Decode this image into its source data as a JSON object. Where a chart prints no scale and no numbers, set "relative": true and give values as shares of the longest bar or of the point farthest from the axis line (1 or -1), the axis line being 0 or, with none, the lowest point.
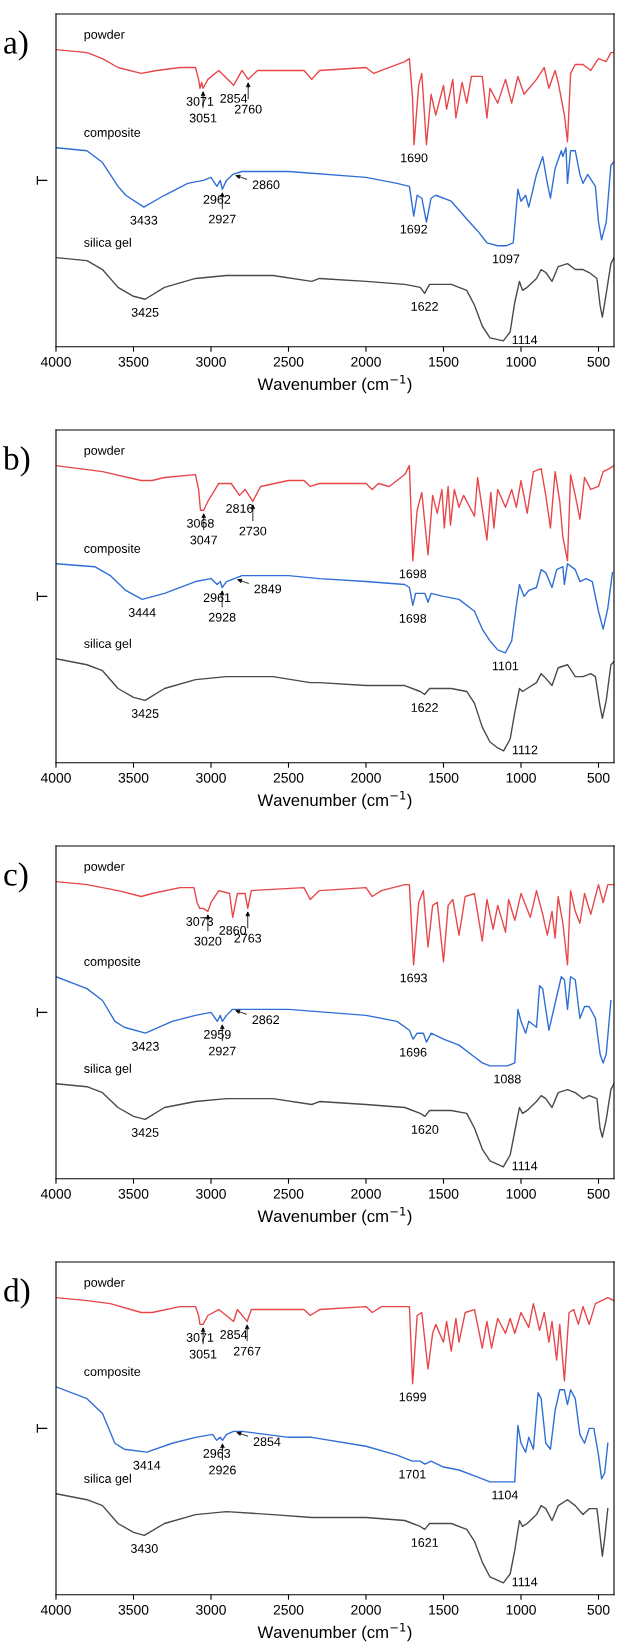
{
  "chart_data": [
    {
      "type": "line",
      "title": "a)",
      "xlabel": "Wavenumber (cm$^{−1}$)",
      "ylabel": "T",
      "relative": true,
      "tick_labels": "x",
      "xlim": [
        4000,
        400
      ],
      "xticks": [
        4000,
        3500,
        3000,
        2500,
        2000,
        1500,
        1000,
        500
      ],
      "series": [
        {
          "name": "powder",
          "color": "#e8474a",
          "x": [
            4000,
            3800,
            3700,
            3600,
            3450,
            3350,
            3200,
            3100,
            3080,
            3071,
            3060,
            3051,
            3020,
            2950,
            2854,
            2800,
            2760,
            2700,
            2400,
            2350,
            2300,
            2000,
            1950,
            1900,
            1750,
            1720,
            1700,
            1690,
            1660,
            1640,
            1610,
            1580,
            1550,
            1500,
            1480,
            1440,
            1420,
            1380,
            1350,
            1320,
            1250,
            1220,
            1200,
            1150,
            1100,
            1060,
            1020,
            980,
            900,
            850,
            820,
            780,
            760,
            720,
            700,
            680,
            650,
            600,
            550,
            500,
            450,
            420,
            400
          ],
          "values": [
            1.0,
            0.99,
            0.97,
            0.94,
            0.92,
            0.93,
            0.94,
            0.94,
            0.9,
            0.87,
            0.89,
            0.87,
            0.9,
            0.93,
            0.88,
            0.93,
            0.9,
            0.93,
            0.93,
            0.9,
            0.93,
            0.94,
            0.92,
            0.93,
            0.96,
            0.97,
            0.84,
            0.68,
            0.88,
            0.92,
            0.68,
            0.85,
            0.78,
            0.88,
            0.8,
            0.9,
            0.77,
            0.89,
            0.82,
            0.91,
            0.91,
            0.77,
            0.87,
            0.82,
            0.9,
            0.82,
            0.91,
            0.85,
            0.9,
            0.94,
            0.87,
            0.93,
            0.89,
            0.78,
            0.69,
            0.92,
            0.95,
            0.95,
            0.93,
            0.97,
            0.96,
            0.99,
            0.99
          ]
        },
        {
          "name": "composite",
          "color": "#2f6fd6",
          "x": [
            4000,
            3800,
            3700,
            3600,
            3550,
            3433,
            3300,
            3150,
            3050,
            3000,
            2962,
            2940,
            2927,
            2900,
            2860,
            2800,
            2500,
            2000,
            1800,
            1720,
            1692,
            1670,
            1640,
            1610,
            1580,
            1550,
            1450,
            1350,
            1280,
            1220,
            1150,
            1097,
            1050,
            1020,
            1000,
            970,
            950,
            900,
            860,
            830,
            810,
            780,
            740,
            730,
            710,
            700,
            680,
            650,
            620,
            600,
            570,
            520,
            500,
            480,
            450,
            420,
            405
          ],
          "values": [
            0.67,
            0.66,
            0.62,
            0.54,
            0.51,
            0.47,
            0.51,
            0.55,
            0.56,
            0.57,
            0.54,
            0.56,
            0.53,
            0.56,
            0.58,
            0.59,
            0.59,
            0.57,
            0.55,
            0.54,
            0.44,
            0.51,
            0.5,
            0.42,
            0.5,
            0.51,
            0.49,
            0.43,
            0.39,
            0.35,
            0.34,
            0.34,
            0.35,
            0.53,
            0.49,
            0.51,
            0.47,
            0.58,
            0.64,
            0.55,
            0.5,
            0.6,
            0.66,
            0.64,
            0.67,
            0.55,
            0.66,
            0.66,
            0.58,
            0.55,
            0.58,
            0.54,
            0.42,
            0.36,
            0.42,
            0.61,
            0.62
          ]
        },
        {
          "name": "silica gel",
          "color": "#4a4a4a",
          "x": [
            4000,
            3800,
            3700,
            3600,
            3500,
            3425,
            3300,
            3100,
            2900,
            2600,
            2350,
            2300,
            2000,
            1750,
            1650,
            1622,
            1590,
            1450,
            1350,
            1300,
            1250,
            1200,
            1114,
            1070,
            1040,
            1010,
            990,
            960,
            900,
            870,
            840,
            800,
            760,
            700,
            650,
            600,
            560,
            510,
            490,
            475,
            450,
            420,
            400
          ],
          "values": [
            0.3,
            0.29,
            0.26,
            0.2,
            0.17,
            0.16,
            0.2,
            0.23,
            0.24,
            0.24,
            0.22,
            0.23,
            0.22,
            0.21,
            0.2,
            0.18,
            0.21,
            0.21,
            0.19,
            0.14,
            0.07,
            0.03,
            0.02,
            0.05,
            0.15,
            0.22,
            0.19,
            0.2,
            0.23,
            0.26,
            0.25,
            0.22,
            0.27,
            0.28,
            0.26,
            0.26,
            0.25,
            0.23,
            0.14,
            0.1,
            0.18,
            0.28,
            0.3
          ]
        }
      ],
      "annotations": [
        {
          "text": "3071",
          "x": 3071,
          "y": 0.87
        },
        {
          "text": "3051",
          "x": 3051,
          "y": 0.87
        },
        {
          "text": "2854",
          "x": 2854,
          "y": 0.88
        },
        {
          "text": "2760",
          "x": 2760,
          "y": 0.9
        },
        {
          "text": "1690",
          "x": 1690,
          "y": 0.68
        },
        {
          "text": "3433",
          "x": 3433,
          "y": 0.47
        },
        {
          "text": "2962",
          "x": 2962,
          "y": 0.54
        },
        {
          "text": "2927",
          "x": 2927,
          "y": 0.53
        },
        {
          "text": "2860",
          "x": 2860,
          "y": 0.58
        },
        {
          "text": "1692",
          "x": 1692,
          "y": 0.44
        },
        {
          "text": "1097",
          "x": 1097,
          "y": 0.34
        },
        {
          "text": "3425",
          "x": 3425,
          "y": 0.16
        },
        {
          "text": "1622",
          "x": 1622,
          "y": 0.18
        },
        {
          "text": "1114",
          "x": 1114,
          "y": 0.02
        }
      ]
    },
    {
      "type": "line",
      "title": "b)",
      "xlabel": "Wavenumber (cm$^{−1}$)",
      "ylabel": "T",
      "relative": true,
      "tick_labels": "x",
      "xlim": [
        4000,
        400
      ],
      "xticks": [
        4000,
        3500,
        3000,
        2500,
        2000,
        1500,
        1000,
        500
      ],
      "series": [
        {
          "name": "powder",
          "color": "#e8474a",
          "x": [
            4000,
            3700,
            3450,
            3380,
            3300,
            3100,
            3080,
            3068,
            3047,
            3020,
            2950,
            2870,
            2816,
            2780,
            2730,
            2680,
            2500,
            2400,
            2360,
            2300,
            2000,
            1960,
            1920,
            1850,
            1750,
            1720,
            1698,
            1670,
            1640,
            1600,
            1570,
            1540,
            1510,
            1495,
            1470,
            1455,
            1430,
            1400,
            1370,
            1300,
            1280,
            1220,
            1195,
            1175,
            1150,
            1100,
            1060,
            1030,
            1000,
            960,
            920,
            870,
            840,
            810,
            780,
            750,
            730,
            700,
            680,
            650,
            620,
            590,
            550,
            500,
            470,
            430,
            400
          ],
          "values": [
            1.0,
            0.98,
            0.95,
            0.95,
            0.96,
            0.97,
            0.92,
            0.85,
            0.85,
            0.88,
            0.94,
            0.94,
            0.9,
            0.92,
            0.88,
            0.93,
            0.95,
            0.95,
            0.93,
            0.94,
            0.94,
            0.92,
            0.94,
            0.93,
            0.97,
            1.0,
            0.68,
            0.85,
            0.91,
            0.7,
            0.9,
            0.84,
            0.92,
            0.79,
            0.93,
            0.8,
            0.92,
            0.86,
            0.9,
            0.83,
            0.96,
            0.75,
            0.91,
            0.79,
            0.92,
            0.86,
            0.92,
            0.86,
            0.95,
            0.84,
            0.98,
            0.99,
            0.9,
            0.79,
            0.98,
            0.88,
            0.76,
            0.68,
            0.97,
            0.9,
            0.82,
            0.96,
            0.92,
            0.93,
            0.98,
            0.99,
            1.0
          ]
        },
        {
          "name": "composite",
          "color": "#2f6fd6",
          "x": [
            4000,
            3750,
            3650,
            3550,
            3444,
            3300,
            3100,
            3000,
            2961,
            2940,
            2928,
            2900,
            2800,
            2500,
            2300,
            2000,
            1750,
            1720,
            1698,
            1680,
            1620,
            1600,
            1580,
            1500,
            1400,
            1300,
            1250,
            1200,
            1150,
            1101,
            1060,
            1030,
            1010,
            980,
            950,
            900,
            870,
            840,
            800,
            770,
            730,
            720,
            700,
            650,
            620,
            580,
            540,
            500,
            470,
            440,
            410
          ],
          "values": [
            0.67,
            0.66,
            0.63,
            0.58,
            0.55,
            0.57,
            0.61,
            0.62,
            0.6,
            0.61,
            0.59,
            0.61,
            0.63,
            0.63,
            0.62,
            0.61,
            0.6,
            0.59,
            0.53,
            0.57,
            0.57,
            0.54,
            0.57,
            0.56,
            0.55,
            0.51,
            0.45,
            0.41,
            0.38,
            0.37,
            0.41,
            0.53,
            0.6,
            0.56,
            0.58,
            0.59,
            0.65,
            0.64,
            0.59,
            0.65,
            0.66,
            0.6,
            0.67,
            0.65,
            0.61,
            0.62,
            0.61,
            0.51,
            0.45,
            0.52,
            0.64
          ]
        },
        {
          "name": "silica gel",
          "color": "#4a4a4a",
          "x": [
            4000,
            3800,
            3700,
            3600,
            3500,
            3425,
            3300,
            3100,
            2900,
            2600,
            2360,
            2300,
            2000,
            1750,
            1650,
            1622,
            1590,
            1450,
            1350,
            1300,
            1250,
            1200,
            1150,
            1112,
            1070,
            1040,
            1010,
            990,
            960,
            900,
            870,
            850,
            800,
            760,
            700,
            650,
            600,
            550,
            520,
            490,
            475,
            450,
            420,
            400
          ],
          "values": [
            0.35,
            0.33,
            0.31,
            0.25,
            0.22,
            0.21,
            0.25,
            0.28,
            0.29,
            0.29,
            0.27,
            0.27,
            0.26,
            0.26,
            0.24,
            0.23,
            0.25,
            0.25,
            0.24,
            0.2,
            0.12,
            0.07,
            0.05,
            0.04,
            0.08,
            0.17,
            0.25,
            0.24,
            0.25,
            0.27,
            0.3,
            0.29,
            0.26,
            0.32,
            0.33,
            0.29,
            0.29,
            0.3,
            0.29,
            0.19,
            0.15,
            0.21,
            0.33,
            0.34
          ]
        }
      ],
      "annotations": [
        {
          "text": "3068",
          "x": 3068,
          "y": 0.85
        },
        {
          "text": "3047",
          "x": 3047,
          "y": 0.85
        },
        {
          "text": "2816",
          "x": 2816,
          "y": 0.9
        },
        {
          "text": "2730",
          "x": 2730,
          "y": 0.88
        },
        {
          "text": "1698",
          "x": 1698,
          "y": 0.68
        },
        {
          "text": "3444",
          "x": 3444,
          "y": 0.55
        },
        {
          "text": "2961",
          "x": 2961,
          "y": 0.6
        },
        {
          "text": "2928",
          "x": 2928,
          "y": 0.59
        },
        {
          "text": "2849",
          "x": 2849,
          "y": 0.62
        },
        {
          "text": "1698",
          "x": 1698,
          "y": 0.53
        },
        {
          "text": "1101",
          "x": 1101,
          "y": 0.37
        },
        {
          "text": "3425",
          "x": 3425,
          "y": 0.21
        },
        {
          "text": "1622",
          "x": 1622,
          "y": 0.23
        },
        {
          "text": "1112",
          "x": 1112,
          "y": 0.04
        }
      ]
    },
    {
      "type": "line",
      "title": "c)",
      "xlabel": "Wavenumber (cm$^{−1}$)",
      "ylabel": "T",
      "relative": true,
      "tick_labels": "x",
      "xlim": [
        4000,
        400
      ],
      "xticks": [
        4000,
        3500,
        3000,
        2500,
        2000,
        1500,
        1000,
        500
      ],
      "series": [
        {
          "name": "powder",
          "color": "#e8474a",
          "x": [
            4000,
            3800,
            3600,
            3450,
            3380,
            3200,
            3110,
            3090,
            3073,
            3050,
            3020,
            3000,
            2950,
            2880,
            2860,
            2830,
            2780,
            2763,
            2740,
            2400,
            2360,
            2300,
            2000,
            1960,
            1900,
            1750,
            1720,
            1693,
            1660,
            1630,
            1600,
            1570,
            1540,
            1500,
            1470,
            1440,
            1400,
            1360,
            1300,
            1250,
            1220,
            1180,
            1150,
            1100,
            1080,
            1040,
            1000,
            940,
            900,
            860,
            830,
            800,
            780,
            760,
            730,
            700,
            680,
            650,
            620,
            590,
            550,
            500,
            470,
            440,
            400
          ],
          "values": [
            1.0,
            0.99,
            0.97,
            0.95,
            0.96,
            0.98,
            0.98,
            0.93,
            0.91,
            0.91,
            0.9,
            0.93,
            0.97,
            0.96,
            0.88,
            0.96,
            0.96,
            0.91,
            0.97,
            0.98,
            0.94,
            0.97,
            0.98,
            0.95,
            0.97,
            0.99,
            0.99,
            0.72,
            0.93,
            0.97,
            0.78,
            0.92,
            0.93,
            0.73,
            0.92,
            0.94,
            0.82,
            0.95,
            0.96,
            0.8,
            0.94,
            0.84,
            0.92,
            0.83,
            0.94,
            0.87,
            0.96,
            0.88,
            0.97,
            0.89,
            0.82,
            0.9,
            0.81,
            0.95,
            0.86,
            0.72,
            0.97,
            0.9,
            0.86,
            0.96,
            0.89,
            0.99,
            0.93,
            0.99,
            0.99
          ]
        },
        {
          "name": "composite",
          "color": "#2f6fd6",
          "x": [
            4000,
            3800,
            3700,
            3620,
            3560,
            3423,
            3250,
            3100,
            3000,
            2959,
            2940,
            2927,
            2900,
            2862,
            2800,
            2500,
            2000,
            1800,
            1720,
            1696,
            1670,
            1630,
            1610,
            1580,
            1500,
            1400,
            1300,
            1250,
            1200,
            1088,
            1040,
            1020,
            1000,
            970,
            950,
            900,
            880,
            860,
            820,
            780,
            740,
            720,
            700,
            680,
            650,
            620,
            590,
            560,
            520,
            490,
            470,
            450,
            420
          ],
          "values": [
            0.68,
            0.64,
            0.6,
            0.53,
            0.51,
            0.49,
            0.53,
            0.55,
            0.56,
            0.53,
            0.55,
            0.53,
            0.55,
            0.57,
            0.57,
            0.57,
            0.55,
            0.53,
            0.5,
            0.47,
            0.49,
            0.49,
            0.46,
            0.49,
            0.47,
            0.45,
            0.41,
            0.39,
            0.38,
            0.38,
            0.39,
            0.57,
            0.53,
            0.49,
            0.53,
            0.51,
            0.65,
            0.64,
            0.5,
            0.59,
            0.68,
            0.67,
            0.57,
            0.68,
            0.67,
            0.54,
            0.58,
            0.58,
            0.54,
            0.42,
            0.39,
            0.42,
            0.6
          ]
        },
        {
          "name": "silica gel",
          "color": "#4a4a4a",
          "x": [
            4000,
            3800,
            3700,
            3600,
            3500,
            3425,
            3300,
            3100,
            2900,
            2600,
            2350,
            2300,
            2000,
            1750,
            1650,
            1620,
            1590,
            1450,
            1350,
            1300,
            1250,
            1200,
            1114,
            1070,
            1040,
            1010,
            990,
            960,
            900,
            870,
            840,
            800,
            760,
            700,
            650,
            600,
            560,
            510,
            490,
            475,
            450,
            420,
            400
          ],
          "values": [
            0.32,
            0.31,
            0.29,
            0.24,
            0.21,
            0.2,
            0.24,
            0.26,
            0.27,
            0.27,
            0.25,
            0.26,
            0.25,
            0.24,
            0.22,
            0.21,
            0.23,
            0.23,
            0.22,
            0.17,
            0.1,
            0.06,
            0.04,
            0.08,
            0.16,
            0.24,
            0.22,
            0.23,
            0.26,
            0.28,
            0.27,
            0.24,
            0.29,
            0.3,
            0.29,
            0.27,
            0.28,
            0.27,
            0.17,
            0.14,
            0.2,
            0.3,
            0.32
          ]
        }
      ],
      "annotations": [
        {
          "text": "3073",
          "x": 3073,
          "y": 0.91
        },
        {
          "text": "3020",
          "x": 3020,
          "y": 0.9
        },
        {
          "text": "2860",
          "x": 2860,
          "y": 0.88
        },
        {
          "text": "2763",
          "x": 2763,
          "y": 0.91
        },
        {
          "text": "1693",
          "x": 1693,
          "y": 0.72
        },
        {
          "text": "3423",
          "x": 3423,
          "y": 0.49
        },
        {
          "text": "2959",
          "x": 2959,
          "y": 0.53
        },
        {
          "text": "2927",
          "x": 2927,
          "y": 0.53
        },
        {
          "text": "2862",
          "x": 2862,
          "y": 0.57
        },
        {
          "text": "1696",
          "x": 1696,
          "y": 0.47
        },
        {
          "text": "1088",
          "x": 1088,
          "y": 0.38
        },
        {
          "text": "3425",
          "x": 3425,
          "y": 0.2
        },
        {
          "text": "1620",
          "x": 1620,
          "y": 0.21
        },
        {
          "text": "1114",
          "x": 1114,
          "y": 0.04
        }
      ]
    },
    {
      "type": "line",
      "title": "d)",
      "xlabel": "Wavenumber (cm$^{−1}$)",
      "ylabel": "T",
      "relative": true,
      "tick_labels": "x",
      "xlim": [
        4000,
        400
      ],
      "xticks": [
        4000,
        3500,
        3000,
        2500,
        2000,
        1500,
        1000,
        500
      ],
      "series": [
        {
          "name": "powder",
          "color": "#e8474a",
          "x": [
            4000,
            3800,
            3650,
            3450,
            3380,
            3200,
            3100,
            3080,
            3071,
            3051,
            3020,
            2950,
            2854,
            2830,
            2767,
            2740,
            2400,
            2360,
            2300,
            2000,
            1960,
            1900,
            1750,
            1720,
            1699,
            1670,
            1640,
            1600,
            1570,
            1550,
            1500,
            1480,
            1450,
            1420,
            1400,
            1360,
            1300,
            1250,
            1220,
            1190,
            1150,
            1100,
            1070,
            1040,
            1000,
            950,
            920,
            880,
            850,
            820,
            800,
            770,
            750,
            720,
            690,
            660,
            630,
            600,
            560,
            520,
            480,
            440,
            400
          ],
          "values": [
            1.0,
            0.99,
            0.98,
            0.95,
            0.95,
            0.97,
            0.97,
            0.94,
            0.91,
            0.91,
            0.94,
            0.96,
            0.92,
            0.96,
            0.92,
            0.96,
            0.96,
            0.94,
            0.96,
            0.97,
            0.95,
            0.97,
            0.97,
            0.97,
            0.71,
            0.94,
            0.95,
            0.76,
            0.88,
            0.91,
            0.85,
            0.92,
            0.82,
            0.93,
            0.85,
            0.95,
            0.96,
            0.83,
            0.92,
            0.83,
            0.93,
            0.88,
            0.93,
            0.88,
            0.95,
            0.9,
            0.98,
            0.89,
            0.95,
            0.85,
            0.92,
            0.79,
            0.91,
            0.72,
            0.95,
            0.96,
            0.91,
            0.97,
            0.91,
            0.98,
            0.99,
            1.0,
            0.99
          ]
        },
        {
          "name": "composite",
          "color": "#2f6fd6",
          "x": [
            4000,
            3800,
            3700,
            3620,
            3560,
            3414,
            3250,
            3100,
            2990,
            2963,
            2940,
            2926,
            2900,
            2854,
            2800,
            2500,
            2350,
            2000,
            1800,
            1701,
            1650,
            1620,
            1580,
            1500,
            1400,
            1300,
            1200,
            1104,
            1040,
            1020,
            1000,
            970,
            950,
            920,
            890,
            870,
            840,
            810,
            780,
            750,
            720,
            700,
            680,
            650,
            620,
            590,
            560,
            530,
            500,
            480,
            460,
            440
          ],
          "values": [
            0.7,
            0.66,
            0.61,
            0.51,
            0.49,
            0.48,
            0.51,
            0.53,
            0.54,
            0.52,
            0.53,
            0.52,
            0.54,
            0.55,
            0.55,
            0.53,
            0.53,
            0.5,
            0.47,
            0.45,
            0.45,
            0.44,
            0.45,
            0.43,
            0.42,
            0.4,
            0.38,
            0.38,
            0.38,
            0.57,
            0.51,
            0.48,
            0.53,
            0.49,
            0.68,
            0.66,
            0.51,
            0.49,
            0.62,
            0.69,
            0.69,
            0.64,
            0.69,
            0.66,
            0.54,
            0.51,
            0.56,
            0.56,
            0.47,
            0.39,
            0.41,
            0.51
          ]
        },
        {
          "name": "silica gel",
          "color": "#4a4a4a",
          "x": [
            4000,
            3800,
            3700,
            3600,
            3500,
            3430,
            3300,
            3100,
            2900,
            2600,
            2350,
            2300,
            2000,
            1750,
            1650,
            1621,
            1590,
            1450,
            1350,
            1300,
            1250,
            1200,
            1114,
            1070,
            1040,
            1010,
            990,
            960,
            900,
            870,
            840,
            800,
            760,
            700,
            650,
            600,
            560,
            510,
            490,
            475,
            460,
            440
          ],
          "values": [
            0.34,
            0.32,
            0.3,
            0.24,
            0.21,
            0.2,
            0.24,
            0.27,
            0.28,
            0.27,
            0.26,
            0.26,
            0.26,
            0.25,
            0.23,
            0.22,
            0.24,
            0.24,
            0.22,
            0.18,
            0.11,
            0.06,
            0.04,
            0.07,
            0.15,
            0.25,
            0.23,
            0.24,
            0.27,
            0.3,
            0.29,
            0.25,
            0.3,
            0.32,
            0.3,
            0.27,
            0.29,
            0.29,
            0.2,
            0.13,
            0.19,
            0.29
          ]
        }
      ],
      "annotations": [
        {
          "text": "3071",
          "x": 3071,
          "y": 0.91
        },
        {
          "text": "3051",
          "x": 3051,
          "y": 0.91
        },
        {
          "text": "2854",
          "x": 2854,
          "y": 0.92
        },
        {
          "text": "2767",
          "x": 2767,
          "y": 0.92
        },
        {
          "text": "1699",
          "x": 1699,
          "y": 0.71
        },
        {
          "text": "3414",
          "x": 3414,
          "y": 0.48
        },
        {
          "text": "2963",
          "x": 2963,
          "y": 0.52
        },
        {
          "text": "2926",
          "x": 2926,
          "y": 0.52
        },
        {
          "text": "2854",
          "x": 2854,
          "y": 0.55
        },
        {
          "text": "1701",
          "x": 1701,
          "y": 0.45
        },
        {
          "text": "1104",
          "x": 1104,
          "y": 0.38
        },
        {
          "text": "3430",
          "x": 3430,
          "y": 0.2
        },
        {
          "text": "1621",
          "x": 1621,
          "y": 0.22
        },
        {
          "text": "1114",
          "x": 1114,
          "y": 0.04
        }
      ]
    }
  ]
}
